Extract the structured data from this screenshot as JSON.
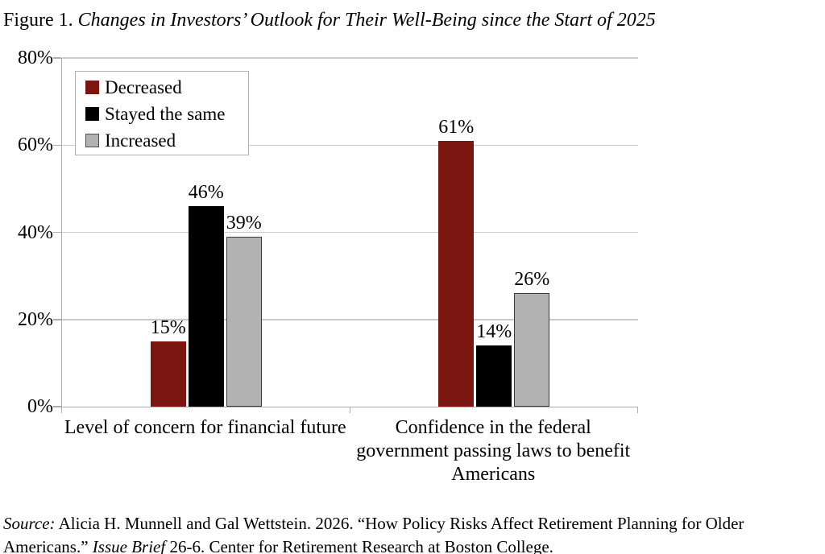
{
  "title": {
    "segments": [
      {
        "text": "Figure 1. ",
        "italic": false
      },
      {
        "text": "Changes in Investors’ Outlook for Their Well-Being since the Start of 2025",
        "italic": true
      }
    ]
  },
  "chart_data": {
    "type": "bar",
    "title": "Figure 1. Changes in Investors’ Outlook for Their Well-Being since the Start of 2025",
    "categories": [
      "Level of concern for financial future",
      "Confidence in the federal government passing laws to benefit Americans"
    ],
    "series": [
      {
        "name": "Decreased",
        "color": "#7a150f",
        "values": [
          15,
          61
        ]
      },
      {
        "name": "Stayed the same",
        "color": "#000000",
        "values": [
          46,
          14
        ]
      },
      {
        "name": "Increased",
        "color": "#b2b2b2",
        "swatch_border": "#4d4d4d",
        "bar_border": "#3a3a3a",
        "values": [
          39,
          26
        ]
      }
    ],
    "value_suffix": "%",
    "ylim": [
      0,
      80
    ],
    "ytick_labels_top_to_bottom": [
      "80%",
      "60%",
      "40%",
      "20%",
      "0%"
    ],
    "grid": true,
    "legend_position": "top-left-inside",
    "gridline_color": "#c9c9c9",
    "axis_color": "#adadad"
  },
  "source": {
    "segments": [
      {
        "text": "Source:",
        "italic": true
      },
      {
        "text": " Alicia H. Munnell and Gal Wettstein. 2026. “How Policy Risks Affect Retirement Planning for Older Americans.” ",
        "italic": false
      },
      {
        "text": "Issue Brief",
        "italic": true
      },
      {
        "text": " 26-6. Center for Retirement Research at Boston College.",
        "italic": false
      }
    ]
  }
}
